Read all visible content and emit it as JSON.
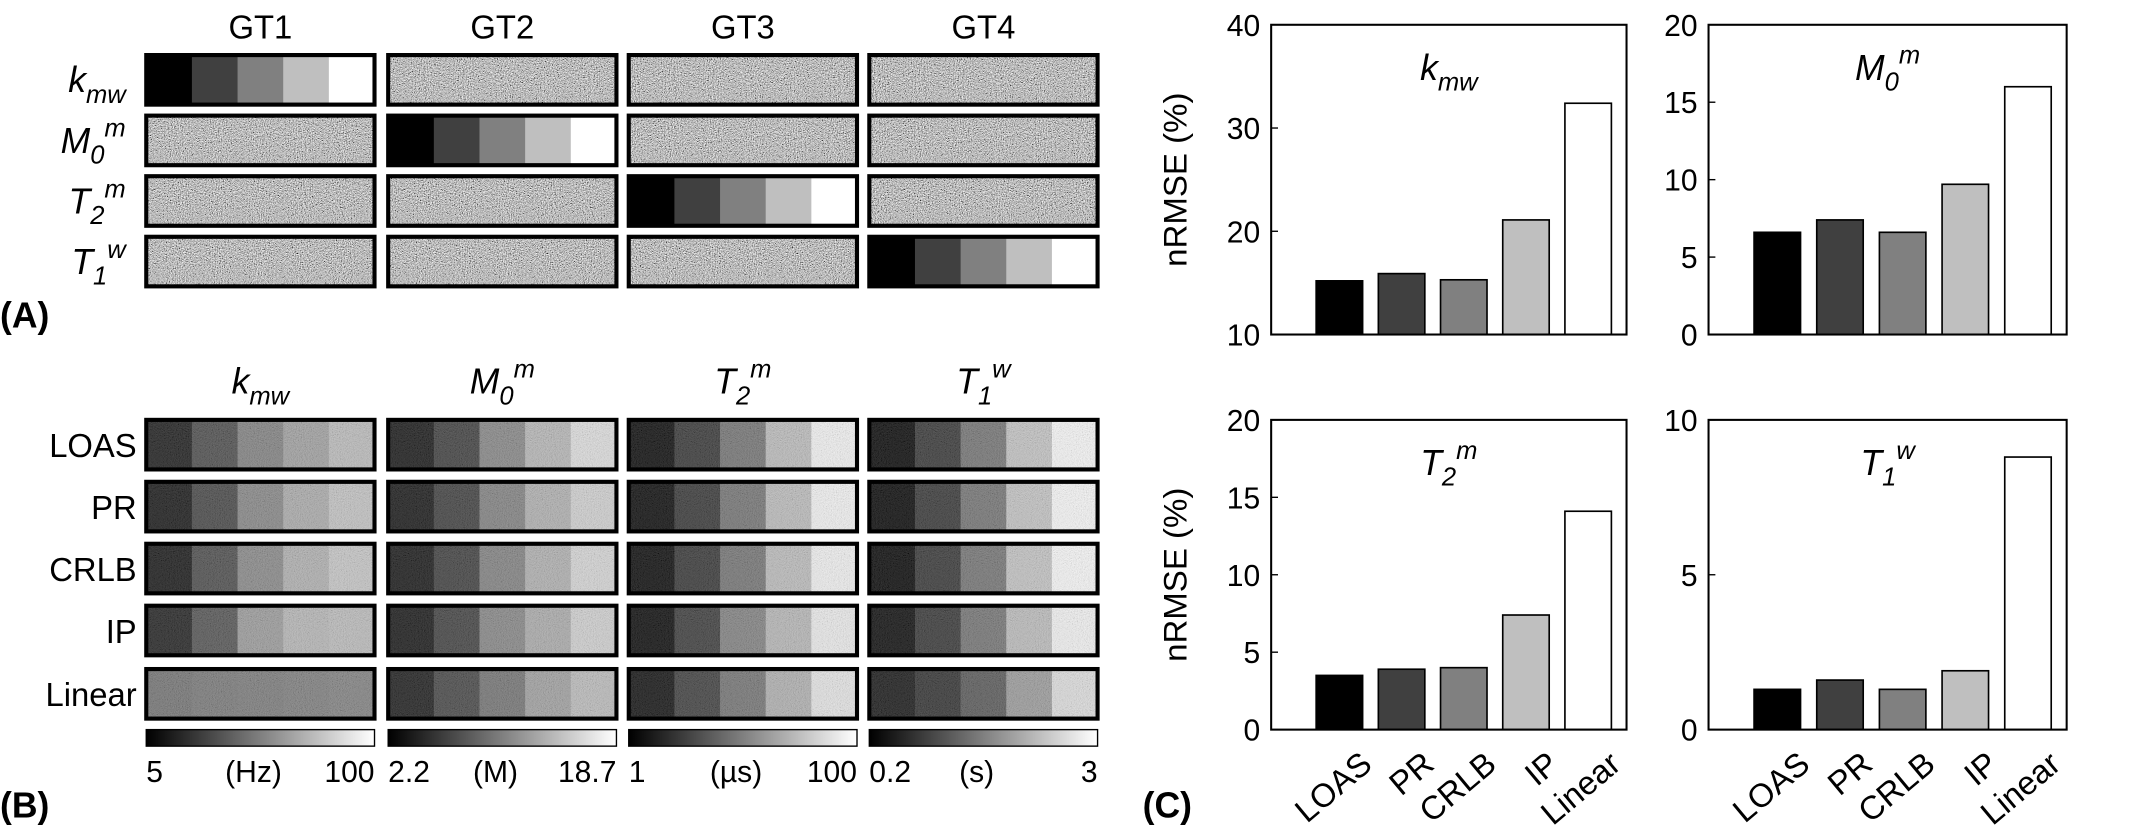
{
  "panel_a": {
    "label": "(A)",
    "columns": [
      "GT1",
      "GT2",
      "GT3",
      "GT4"
    ],
    "rows": [
      {
        "base": "k",
        "sub": "mw"
      },
      {
        "base": "M",
        "sub": "0",
        "sup": "m"
      },
      {
        "base": "T",
        "sub": "2",
        "sup": "m"
      },
      {
        "base": "T",
        "sub": "1",
        "sup": "w"
      }
    ]
  },
  "panel_b": {
    "label": "(B)",
    "columns": [
      {
        "base": "k",
        "sub": "mw"
      },
      {
        "base": "M",
        "sub": "0",
        "sup": "m"
      },
      {
        "base": "T",
        "sub": "2",
        "sup": "m"
      },
      {
        "base": "T",
        "sub": "1",
        "sup": "w"
      }
    ],
    "rows": [
      "LOAS",
      "PR",
      "CRLB",
      "IP",
      "Linear"
    ],
    "colorbars": [
      {
        "min": "5",
        "unit": "(Hz)",
        "max": "100"
      },
      {
        "min": "2.2",
        "unit": "(M)",
        "max": "18.7"
      },
      {
        "min": "1",
        "unit": "(µs)",
        "max": "100"
      },
      {
        "min": "0.2",
        "unit": "(s)",
        "max": "3"
      }
    ]
  },
  "panel_c": {
    "label": "(C)"
  },
  "chart_data": [
    {
      "type": "bar",
      "title": {
        "base": "k",
        "sub": "mw"
      },
      "y_label": "nRMSE (%)",
      "values": [
        15.2,
        15.9,
        15.3,
        21.1,
        32.4
      ],
      "colors": [
        "#000000",
        "#404040",
        "#808080",
        "#bfbfbf",
        "#ffffff"
      ],
      "ylim": [
        10,
        40
      ],
      "yticks": [
        10,
        20,
        30,
        40
      ]
    },
    {
      "type": "bar",
      "title": {
        "base": "M",
        "sub": "0",
        "sup": "m"
      },
      "values": [
        6.6,
        7.4,
        6.6,
        9.7,
        16.0
      ],
      "colors": [
        "#000000",
        "#404040",
        "#808080",
        "#bfbfbf",
        "#ffffff"
      ],
      "ylim": [
        0,
        20
      ],
      "yticks": [
        0,
        5,
        10,
        15,
        20
      ]
    },
    {
      "type": "bar",
      "title": {
        "base": "T",
        "sub": "2",
        "sup": "m"
      },
      "y_label": "nRMSE (%)",
      "categories": [
        "LOAS",
        "PR",
        "CRLB",
        "IP",
        "Linear"
      ],
      "values": [
        3.5,
        3.9,
        4.0,
        7.4,
        14.1
      ],
      "colors": [
        "#000000",
        "#404040",
        "#808080",
        "#bfbfbf",
        "#ffffff"
      ],
      "ylim": [
        0,
        20
      ],
      "yticks": [
        0,
        5,
        10,
        15,
        20
      ]
    },
    {
      "type": "bar",
      "title": {
        "base": "T",
        "sub": "1",
        "sup": "w"
      },
      "categories": [
        "LOAS",
        "PR",
        "CRLB",
        "IP",
        "Linear"
      ],
      "values": [
        1.3,
        1.6,
        1.3,
        1.9,
        8.8
      ],
      "colors": [
        "#000000",
        "#404040",
        "#808080",
        "#bfbfbf",
        "#ffffff"
      ],
      "ylim": [
        0,
        10
      ],
      "yticks": [
        0,
        5,
        10
      ]
    }
  ]
}
